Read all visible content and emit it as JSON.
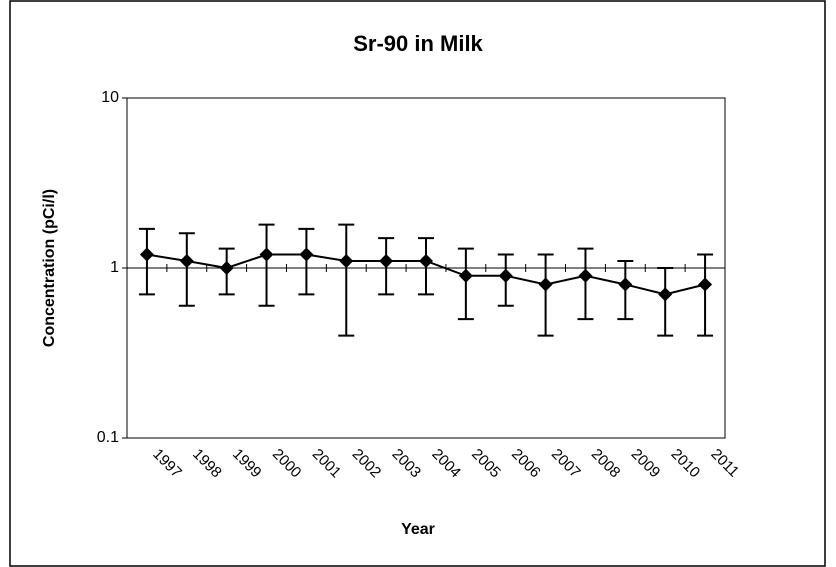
{
  "chart_data": {
    "type": "line",
    "title": "Sr-90 in Milk",
    "x_label": "Year",
    "y_label": "Concentration (pCi/l)",
    "categories": [
      "1997",
      "1998",
      "1999",
      "2000",
      "2001",
      "2002",
      "2003",
      "2004",
      "2005",
      "2006",
      "2007",
      "2008",
      "2009",
      "2010",
      "2011"
    ],
    "series": [
      {
        "name": "Sr-90",
        "color": "#000000",
        "values": [
          1.2,
          1.1,
          1.0,
          1.2,
          1.2,
          1.1,
          1.1,
          1.1,
          0.9,
          0.9,
          0.8,
          0.9,
          0.8,
          0.7,
          0.8
        ],
        "errors": [
          0.5,
          0.5,
          0.3,
          0.6,
          0.5,
          0.7,
          0.4,
          0.4,
          0.4,
          0.3,
          0.4,
          0.4,
          0.3,
          0.3,
          0.4
        ]
      }
    ],
    "log_scale": true,
    "ylim": [
      0.1,
      10
    ],
    "yticks": [
      0.1,
      1,
      10
    ],
    "x_axis_at": 1,
    "grid": true
  }
}
